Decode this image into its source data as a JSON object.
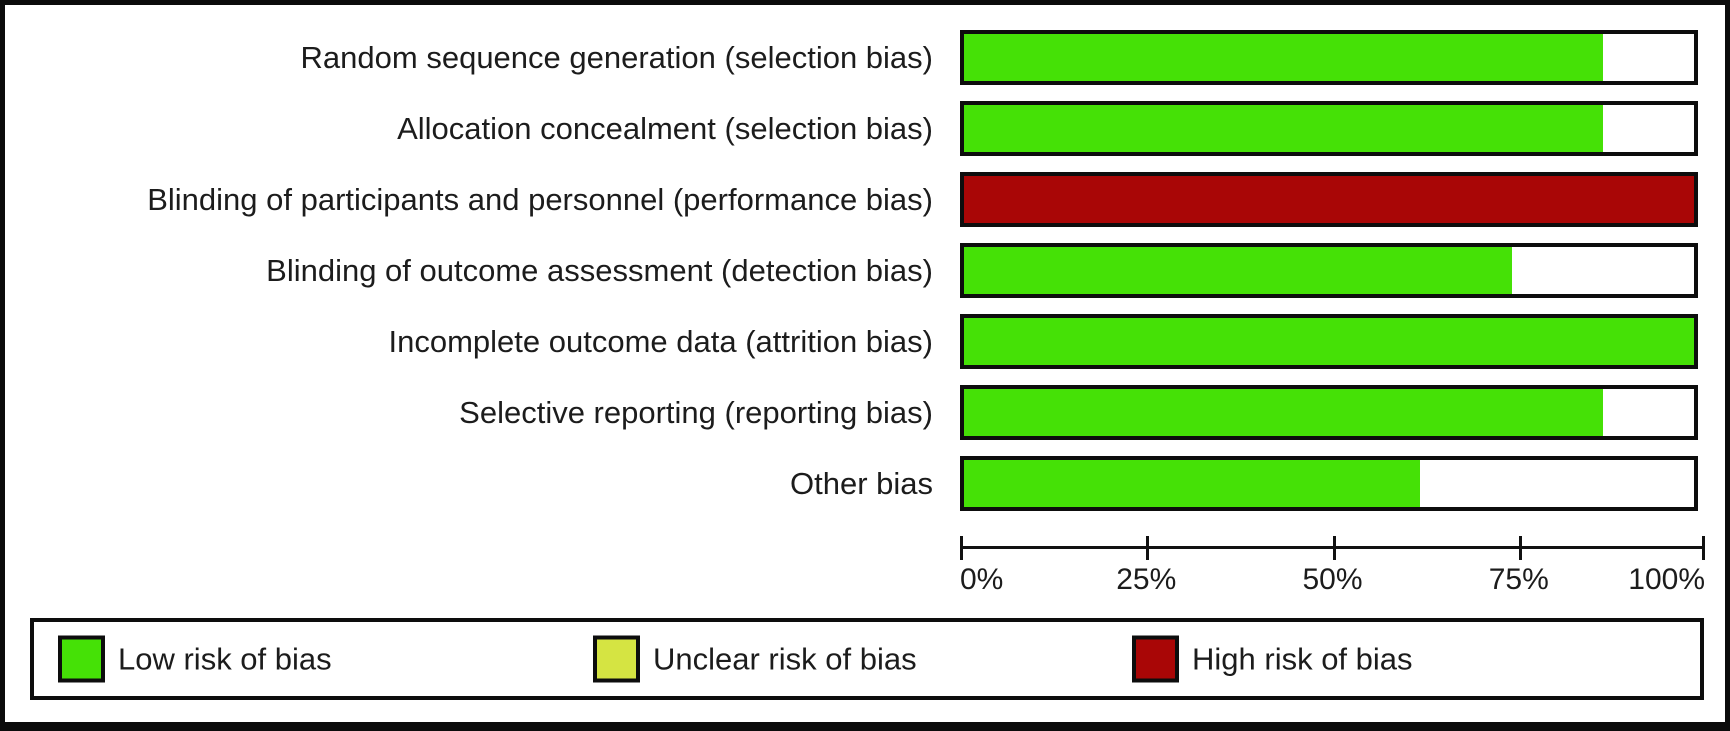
{
  "chart_data": {
    "type": "bar",
    "stacked": true,
    "orientation": "horizontal",
    "title": "",
    "categories": [
      "Random sequence generation (selection bias)",
      "Allocation concealment (selection bias)",
      "Blinding of participants and personnel (performance bias)",
      "Blinding of outcome assessment (detection bias)",
      "Incomplete outcome data (attrition bias)",
      "Selective reporting (reporting bias)",
      "Other bias"
    ],
    "series": [
      {
        "name": "Low risk of bias",
        "color": "#45e106",
        "values": [
          87.5,
          87.5,
          0,
          75,
          100,
          87.5,
          62.5
        ]
      },
      {
        "name": "Unclear risk of bias",
        "color": "#d5e442",
        "values": [
          0,
          0,
          0,
          0,
          0,
          0,
          0
        ]
      },
      {
        "name": "High risk of bias",
        "color": "#a90606",
        "values": [
          0,
          0,
          100,
          0,
          0,
          0,
          0
        ]
      }
    ],
    "x_axis": {
      "ticks": [
        "0%",
        "25%",
        "50%",
        "75%",
        "100%"
      ],
      "range": [
        0,
        100
      ]
    },
    "legend_position": "bottom",
    "background_fill": "#ffffff"
  }
}
